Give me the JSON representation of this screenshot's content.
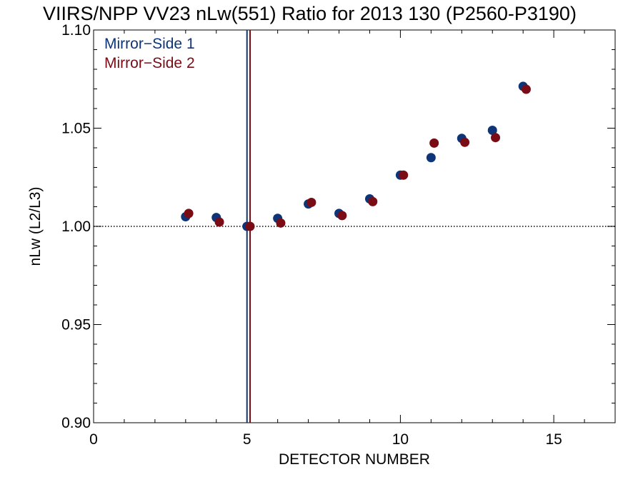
{
  "chart_data": {
    "type": "scatter",
    "title": "VIIRS/NPP VV23 nLw(551) Ratio for 2013 130 (P2560-P3190)",
    "xlabel": "DETECTOR NUMBER",
    "ylabel": "nLw (L2/L3)",
    "xlim": [
      0,
      17
    ],
    "ylim": [
      0.9,
      1.1
    ],
    "xticks": [
      0,
      5,
      10,
      15
    ],
    "xtick_labels": [
      "0",
      "5",
      "10",
      "15"
    ],
    "yticks": [
      0.9,
      0.95,
      1.0,
      1.05,
      1.1
    ],
    "ytick_labels": [
      "0.90",
      "0.95",
      "1.00",
      "1.05",
      "1.10"
    ],
    "reference_line_y": 1.0,
    "reference_line_style": "dotted",
    "legend_position": "top-left",
    "series": [
      {
        "name": "Mirror−Side 1",
        "color": "#0d3577",
        "x": [
          3,
          4,
          5,
          6,
          7,
          8,
          9,
          10,
          11,
          12,
          13,
          14
        ],
        "y": [
          1.0049,
          1.0045,
          1.0,
          1.0041,
          1.0114,
          1.0066,
          1.014,
          1.0261,
          1.035,
          1.0448,
          1.0489,
          1.0713
        ],
        "vline_x": 5.0
      },
      {
        "name": "Mirror−Side 2",
        "color": "#7a0c16",
        "x": [
          3.1,
          4.1,
          5.1,
          6.1,
          7.1,
          8.1,
          9.1,
          10.1,
          11.1,
          12.1,
          13.1,
          14.1
        ],
        "y": [
          1.0066,
          1.0022,
          1.0,
          1.0017,
          1.0122,
          1.0055,
          1.0126,
          1.0261,
          1.0424,
          1.0428,
          1.0452,
          1.0698
        ],
        "vline_x": 5.1
      }
    ]
  }
}
